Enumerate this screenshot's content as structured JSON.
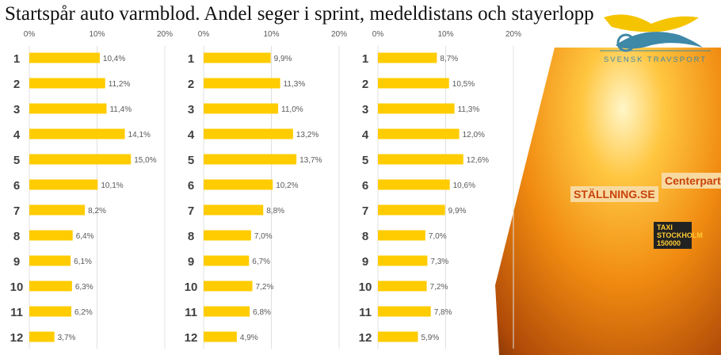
{
  "title": "Startspår auto varmblod. Andel seger i sprint, medeldistans och stayerlopp",
  "logo_text": "SVENSK TRAVSPORT",
  "photo_banners": [
    "STÄLLNING.SE",
    "Centerpartiet",
    "TAXI STOCKHOLM 150000"
  ],
  "colors": {
    "bar": "#FFCC00",
    "grid": "#E0E0E0",
    "tick": "#595959",
    "category": "#404040"
  },
  "chart_data": [
    {
      "type": "bar",
      "orientation": "horizontal",
      "categories": [
        "1",
        "2",
        "3",
        "4",
        "5",
        "6",
        "7",
        "8",
        "9",
        "10",
        "11",
        "12"
      ],
      "values": [
        10.4,
        11.2,
        11.4,
        14.1,
        15.0,
        10.1,
        8.2,
        6.4,
        6.1,
        6.3,
        6.2,
        3.7
      ],
      "labels": [
        "10,4%",
        "11,2%",
        "11,4%",
        "14,1%",
        "15,0%",
        "10,1%",
        "8,2%",
        "6,4%",
        "6,1%",
        "6,3%",
        "6,2%",
        "3,7%"
      ],
      "xlim": [
        0,
        20
      ],
      "ticks": [
        "0%",
        "10%",
        "20%"
      ],
      "grid": true
    },
    {
      "type": "bar",
      "orientation": "horizontal",
      "categories": [
        "1",
        "2",
        "3",
        "4",
        "5",
        "6",
        "7",
        "8",
        "9",
        "10",
        "11",
        "12"
      ],
      "values": [
        9.9,
        11.3,
        11.0,
        13.2,
        13.7,
        10.2,
        8.8,
        7.0,
        6.7,
        7.2,
        6.8,
        4.9
      ],
      "labels": [
        "9,9%",
        "11,3%",
        "11,0%",
        "13,2%",
        "13,7%",
        "10,2%",
        "8,8%",
        "7,0%",
        "6,7%",
        "7,2%",
        "6,8%",
        "4,9%"
      ],
      "xlim": [
        0,
        20
      ],
      "ticks": [
        "0%",
        "10%",
        "20%"
      ],
      "grid": true
    },
    {
      "type": "bar",
      "orientation": "horizontal",
      "categories": [
        "1",
        "2",
        "3",
        "4",
        "5",
        "6",
        "7",
        "8",
        "9",
        "10",
        "11",
        "12"
      ],
      "values": [
        8.7,
        10.5,
        11.3,
        12.0,
        12.6,
        10.6,
        9.9,
        7.0,
        7.3,
        7.2,
        7.8,
        5.9
      ],
      "labels": [
        "8,7%",
        "10,5%",
        "11,3%",
        "12,0%",
        "12,6%",
        "10,6%",
        "9,9%",
        "7,0%",
        "7,3%",
        "7,2%",
        "7,8%",
        "5,9%"
      ],
      "xlim": [
        0,
        20
      ],
      "ticks": [
        "0%",
        "10%",
        "20%"
      ],
      "grid": true
    }
  ]
}
